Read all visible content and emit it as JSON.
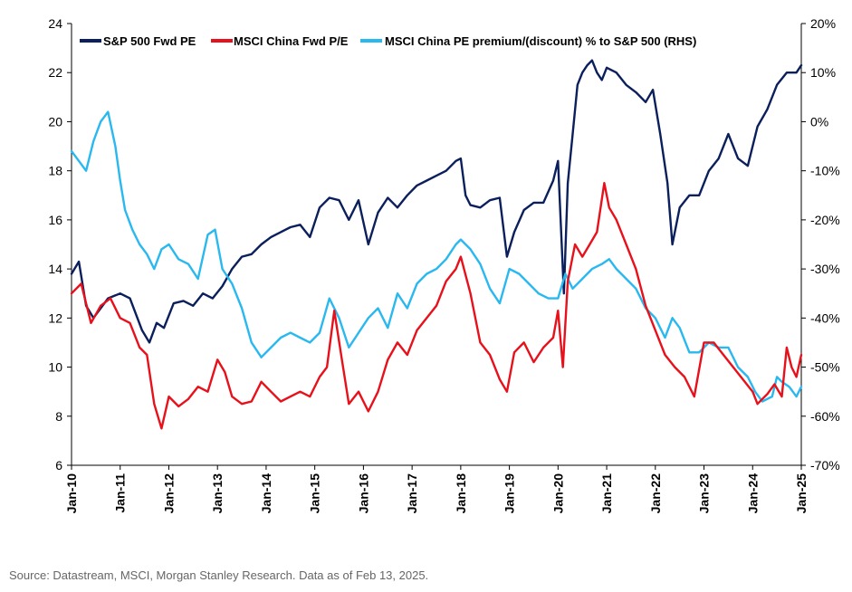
{
  "chart_data": {
    "type": "line",
    "title": "",
    "source": "Source: Datastream, MSCI, Morgan Stanley Research. Data as of Feb 13, 2025.",
    "x_labels": [
      "Jan-10",
      "Jan-11",
      "Jan-12",
      "Jan-13",
      "Jan-14",
      "Jan-15",
      "Jan-16",
      "Jan-17",
      "Jan-18",
      "Jan-19",
      "Jan-20",
      "Jan-21",
      "Jan-22",
      "Jan-23",
      "Jan-24",
      "Jan-25"
    ],
    "xlim": [
      2010,
      2025
    ],
    "ylim_left": [
      6,
      24
    ],
    "left_ticks": [
      "6",
      "8",
      "10",
      "12",
      "14",
      "16",
      "18",
      "20",
      "22",
      "24"
    ],
    "ylim_right": [
      -70,
      20
    ],
    "right_ticks": [
      "-70%",
      "-60%",
      "-50%",
      "-40%",
      "-30%",
      "-20%",
      "-10%",
      "0%",
      "10%",
      "20%"
    ],
    "colors": {
      "sp500": "#0a1f5c",
      "china": "#e8101a",
      "premium": "#29b8ef"
    },
    "series": [
      {
        "name": "S&P 500 Fwd PE",
        "axis": "left",
        "color_key": "sp500",
        "x": [
          2010.0,
          2010.15,
          2010.3,
          2010.45,
          2010.6,
          2010.75,
          2011.0,
          2011.2,
          2011.45,
          2011.6,
          2011.75,
          2011.9,
          2012.1,
          2012.3,
          2012.5,
          2012.7,
          2012.9,
          2013.1,
          2013.3,
          2013.5,
          2013.7,
          2013.9,
          2014.1,
          2014.3,
          2014.5,
          2014.7,
          2014.9,
          2015.1,
          2015.3,
          2015.5,
          2015.7,
          2015.9,
          2016.1,
          2016.3,
          2016.5,
          2016.7,
          2016.9,
          2017.1,
          2017.3,
          2017.5,
          2017.7,
          2017.9,
          2018.0,
          2018.1,
          2018.2,
          2018.4,
          2018.6,
          2018.8,
          2018.95,
          2019.1,
          2019.3,
          2019.5,
          2019.7,
          2019.9,
          2020.0,
          2020.12,
          2020.2,
          2020.3,
          2020.4,
          2020.5,
          2020.6,
          2020.7,
          2020.8,
          2020.9,
          2021.0,
          2021.2,
          2021.4,
          2021.6,
          2021.8,
          2021.95,
          2022.1,
          2022.25,
          2022.35,
          2022.5,
          2022.7,
          2022.9,
          2023.1,
          2023.3,
          2023.5,
          2023.7,
          2023.9,
          2024.1,
          2024.3,
          2024.5,
          2024.7,
          2024.9,
          2025.0
        ],
        "values": [
          13.8,
          14.3,
          12.5,
          12.0,
          12.4,
          12.8,
          13.0,
          12.8,
          11.5,
          11.0,
          11.8,
          11.6,
          12.6,
          12.7,
          12.5,
          13.0,
          12.8,
          13.3,
          14.0,
          14.5,
          14.6,
          15.0,
          15.3,
          15.5,
          15.7,
          15.8,
          15.3,
          16.5,
          16.9,
          16.8,
          16.0,
          16.8,
          15.0,
          16.3,
          16.9,
          16.5,
          17.0,
          17.4,
          17.6,
          17.8,
          18.0,
          18.4,
          18.5,
          17.0,
          16.6,
          16.5,
          16.8,
          16.9,
          14.5,
          15.5,
          16.4,
          16.7,
          16.7,
          17.6,
          18.4,
          13.0,
          17.5,
          19.5,
          21.5,
          22.0,
          22.3,
          22.5,
          22.0,
          21.7,
          22.2,
          22.0,
          21.5,
          21.2,
          20.8,
          21.3,
          19.5,
          17.5,
          15.0,
          16.5,
          17.0,
          17.0,
          18.0,
          18.5,
          19.5,
          18.5,
          18.2,
          19.8,
          20.5,
          21.5,
          22.0,
          22.0,
          22.3
        ]
      },
      {
        "name": "MSCI China Fwd P/E",
        "axis": "left",
        "color_key": "china",
        "x": [
          2010.0,
          2010.2,
          2010.4,
          2010.6,
          2010.8,
          2011.0,
          2011.2,
          2011.4,
          2011.55,
          2011.7,
          2011.85,
          2012.0,
          2012.2,
          2012.4,
          2012.6,
          2012.8,
          2013.0,
          2013.15,
          2013.3,
          2013.5,
          2013.7,
          2013.9,
          2014.1,
          2014.3,
          2014.5,
          2014.7,
          2014.9,
          2015.1,
          2015.25,
          2015.4,
          2015.55,
          2015.7,
          2015.9,
          2016.1,
          2016.3,
          2016.5,
          2016.7,
          2016.9,
          2017.1,
          2017.3,
          2017.5,
          2017.7,
          2017.9,
          2018.0,
          2018.2,
          2018.4,
          2018.6,
          2018.8,
          2018.95,
          2019.1,
          2019.3,
          2019.5,
          2019.7,
          2019.9,
          2020.0,
          2020.1,
          2020.2,
          2020.35,
          2020.5,
          2020.65,
          2020.8,
          2020.95,
          2021.05,
          2021.2,
          2021.4,
          2021.6,
          2021.8,
          2022.0,
          2022.2,
          2022.4,
          2022.6,
          2022.8,
          2023.0,
          2023.2,
          2023.4,
          2023.6,
          2023.8,
          2024.0,
          2024.1,
          2024.3,
          2024.45,
          2024.6,
          2024.7,
          2024.8,
          2024.9,
          2025.0
        ],
        "values": [
          13.0,
          13.4,
          11.8,
          12.5,
          12.8,
          12.0,
          11.8,
          10.8,
          10.5,
          8.5,
          7.5,
          8.8,
          8.4,
          8.7,
          9.2,
          9.0,
          10.3,
          9.8,
          8.8,
          8.5,
          8.6,
          9.4,
          9.0,
          8.6,
          8.8,
          9.0,
          8.8,
          9.6,
          10.0,
          12.3,
          10.4,
          8.5,
          9.0,
          8.2,
          9.0,
          10.3,
          11.0,
          10.5,
          11.5,
          12.0,
          12.5,
          13.5,
          14.0,
          14.5,
          13.0,
          11.0,
          10.5,
          9.5,
          9.0,
          10.6,
          11.0,
          10.2,
          10.8,
          11.2,
          12.3,
          10.0,
          13.5,
          15.0,
          14.5,
          15.0,
          15.5,
          17.5,
          16.5,
          16.0,
          15.0,
          14.0,
          12.5,
          11.5,
          10.5,
          10.0,
          9.6,
          8.8,
          11.0,
          11.0,
          10.5,
          10.0,
          9.5,
          9.0,
          8.5,
          8.9,
          9.3,
          8.8,
          10.8,
          10.0,
          9.6,
          10.5
        ]
      },
      {
        "name": "MSCI China PE premium/(discount) % to S&P 500 (RHS)",
        "axis": "right",
        "color_key": "premium",
        "x": [
          2010.0,
          2010.15,
          2010.3,
          2010.45,
          2010.6,
          2010.75,
          2010.9,
          2011.0,
          2011.1,
          2011.25,
          2011.4,
          2011.55,
          2011.7,
          2011.85,
          2012.0,
          2012.2,
          2012.4,
          2012.6,
          2012.8,
          2012.95,
          2013.1,
          2013.3,
          2013.5,
          2013.7,
          2013.9,
          2014.1,
          2014.3,
          2014.5,
          2014.7,
          2014.9,
          2015.1,
          2015.3,
          2015.5,
          2015.7,
          2015.9,
          2016.1,
          2016.3,
          2016.5,
          2016.7,
          2016.9,
          2017.1,
          2017.3,
          2017.5,
          2017.7,
          2017.9,
          2018.0,
          2018.2,
          2018.4,
          2018.6,
          2018.8,
          2019.0,
          2019.2,
          2019.4,
          2019.6,
          2019.8,
          2020.0,
          2020.15,
          2020.3,
          2020.5,
          2020.7,
          2020.9,
          2021.05,
          2021.2,
          2021.4,
          2021.6,
          2021.8,
          2022.0,
          2022.2,
          2022.35,
          2022.5,
          2022.7,
          2022.9,
          2023.1,
          2023.3,
          2023.5,
          2023.7,
          2023.9,
          2024.05,
          2024.2,
          2024.4,
          2024.5,
          2024.6,
          2024.75,
          2024.9,
          2025.0
        ],
        "values": [
          -6,
          -8,
          -10,
          -4,
          0,
          2,
          -5,
          -12,
          -18,
          -22,
          -25,
          -27,
          -30,
          -26,
          -25,
          -28,
          -29,
          -32,
          -23,
          -22,
          -30,
          -33,
          -38,
          -45,
          -48,
          -46,
          -44,
          -43,
          -44,
          -45,
          -43,
          -36,
          -40,
          -46,
          -43,
          -40,
          -38,
          -42,
          -35,
          -38,
          -33,
          -31,
          -30,
          -28,
          -25,
          -24,
          -26,
          -29,
          -34,
          -37,
          -30,
          -31,
          -33,
          -35,
          -36,
          -36,
          -31,
          -34,
          -32,
          -30,
          -29,
          -28,
          -30,
          -32,
          -34,
          -38,
          -40,
          -44,
          -40,
          -42,
          -47,
          -47,
          -45,
          -46,
          -46,
          -50,
          -52,
          -55,
          -57,
          -56,
          -52,
          -53,
          -54,
          -56,
          -54
        ]
      }
    ]
  }
}
